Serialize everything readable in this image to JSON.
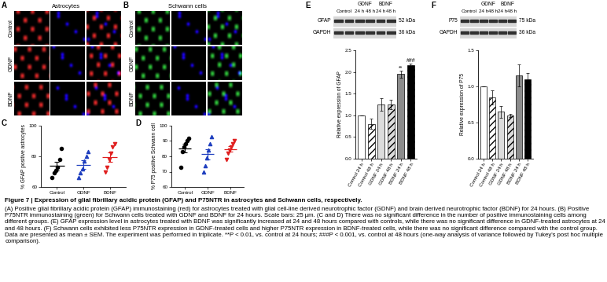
{
  "images": [
    {
      "panel": "A",
      "title": "Astrocytes",
      "rows": [
        "Control",
        "GDNF",
        "BDNF"
      ],
      "color": "#e02828"
    },
    {
      "panel": "B",
      "title": "Schwann cells",
      "rows": [
        "Control",
        "GDNF",
        "BDNF"
      ],
      "color": "#2ec43a"
    }
  ],
  "blots": [
    {
      "panel": "E",
      "groups": [
        {
          "name": "Control"
        },
        {
          "name": "GDNF",
          "lanes": [
            "24 h",
            "48 h"
          ]
        },
        {
          "name": "BDNF",
          "lanes": [
            "24 h",
            "48 h"
          ]
        }
      ],
      "proteins": [
        {
          "name": "GFAP",
          "size": "52 kDa"
        },
        {
          "name": "GAPDH",
          "size": "36 kDa"
        }
      ]
    },
    {
      "panel": "F",
      "groups": [
        {
          "name": "Control"
        },
        {
          "name": "GDNF",
          "lanes": [
            "24 h",
            "48 h"
          ]
        },
        {
          "name": "BDNF",
          "lanes": [
            "24 h",
            "48 h"
          ]
        }
      ],
      "proteins": [
        {
          "name": "P75",
          "size": "75 kDa"
        },
        {
          "name": "GAPDH",
          "size": "36 kDa"
        }
      ]
    }
  ],
  "chart_data": [
    {
      "panel": "C",
      "type": "scatter",
      "ylabel": "% GFAP positive astrocytes",
      "ylim": [
        60,
        100
      ],
      "yticks": [
        60,
        80,
        100
      ],
      "series": [
        {
          "name": "Control",
          "color": "#000000",
          "marker": "circle",
          "values": [
            66,
            69,
            71,
            73,
            78,
            85
          ],
          "mean": 73.7,
          "sem": 2.8
        },
        {
          "name": "GDNF",
          "color": "#1f3fbf",
          "marker": "triangle_up",
          "values": [
            66,
            69,
            72,
            77,
            80,
            83
          ],
          "mean": 74.5,
          "sem": 2.7
        },
        {
          "name": "BDNF",
          "color": "#e02020",
          "marker": "triangle_down",
          "values": [
            70,
            73,
            78,
            82,
            86,
            88
          ],
          "mean": 79.5,
          "sem": 2.9
        }
      ]
    },
    {
      "panel": "D",
      "type": "scatter",
      "ylabel": "% P75 positive Schwann cell",
      "ylim": [
        60,
        100
      ],
      "yticks": [
        60,
        70,
        80,
        90,
        100
      ],
      "series": [
        {
          "name": "Control",
          "color": "#000000",
          "marker": "circle",
          "values": [
            73,
            83,
            86,
            88,
            90,
            92
          ],
          "mean": 85.3,
          "sem": 2.8
        },
        {
          "name": "GDNF",
          "color": "#1f3fbf",
          "marker": "triangle_up",
          "values": [
            70,
            74,
            79,
            84,
            88,
            93
          ],
          "mean": 81.3,
          "sem": 3.5
        },
        {
          "name": "BDNF",
          "color": "#e02020",
          "marker": "triangle_down",
          "values": [
            78,
            82,
            84,
            86,
            88,
            90
          ],
          "mean": 84.7,
          "sem": 1.8
        }
      ]
    },
    {
      "panel": "E",
      "type": "bar",
      "ylabel": "Relative expression of GFAP",
      "categories": [
        "Control 24 h",
        "Control 48 h",
        "GDNF 24 h",
        "GDNF 48 h",
        "BDNF 24 h",
        "BDNF 48 h"
      ],
      "values": [
        1.0,
        0.8,
        1.25,
        1.25,
        1.95,
        2.15
      ],
      "error": [
        0,
        0.12,
        0.15,
        0.1,
        0.08,
        0.05
      ],
      "colors": [
        "#ffffff",
        "#ffffff",
        "#dcdcdc",
        "#dcdcdc",
        "#8c8c8c",
        "#000000"
      ],
      "ylim": [
        0,
        2.5
      ],
      "yticks": [
        {
          "value": 0,
          "label": "0.0"
        },
        {
          "value": 0.5,
          "label": "0.5"
        },
        {
          "value": 1.0,
          "label": "1.0"
        },
        {
          "value": 1.5,
          "label": "1.5"
        },
        {
          "value": 2.0,
          "label": "2.0"
        },
        {
          "value": 2.5,
          "label": "2.5"
        }
      ],
      "annotations": [
        {
          "category": "BDNF 24 h",
          "text": "**"
        },
        {
          "category": "BDNF 48 h",
          "text": "###"
        }
      ]
    },
    {
      "panel": "F",
      "type": "bar",
      "ylabel": "Relative expression of P75",
      "categories": [
        "Control 24 h",
        "Control 48 h",
        "GDNF 24 h",
        "GDNF 48 h",
        "BDNF 24 h",
        "BDNF 48 h"
      ],
      "values": [
        1.0,
        0.85,
        0.65,
        0.6,
        1.15,
        1.1
      ],
      "error": [
        0,
        0.1,
        0.08,
        0.02,
        0.15,
        0.08
      ],
      "colors": [
        "#ffffff",
        "#ffffff",
        "#dcdcdc",
        "#dcdcdc",
        "#8c8c8c",
        "#000000"
      ],
      "ylim": [
        0,
        1.5
      ],
      "yticks": [
        {
          "value": 0,
          "label": "0.0"
        },
        {
          "value": 0.5,
          "label": "0.5"
        },
        {
          "value": 1.0,
          "label": "1.0"
        },
        {
          "value": 1.5,
          "label": "1.5"
        }
      ]
    }
  ],
  "caption": {
    "title": "Figure 7 | Expression of glial fibrillary acidic protein (GFAP) and P75NTR in astrocytes and Schwann cells, respectively.",
    "text": "(A) Positive glial fibrillary acidic protein (GFAP) immunostaining (red) for astrocytes treated with glial cell-line derived neurotrophic factor (GDNF) and brain derived neurotrophic factor (BDNF) for 24 hours. (B) Positive P75NTR immunostaining (green) for Schwann cells treated with GDNF and BDNF for 24 hours. Scale bars: 25 µm. (C and D) There was no significant difference in the number of positive immunostaining cells among different groups. (E) GFAP expression level in astrocytes treated with BDNF was significantly increased at 24 and 48 hours compared with controls, while there was no significant difference in GDNF-treated astrocytes at 24 and 48 hours. (F) Schwann cells exhibited less P75NTR expression in GDNF-treated cells and higher P75NTR expression in BDNF-treated cells, while there was no significant difference compared with the control group. Data are presented as mean ± SEM. The experiment was performed in triplicate. **P < 0.01, vs. control at 24 hours; ###P < 0.001, vs. control at 48 hours (one-way analysis of variance followed by Tukey's post hoc multiple comparison)."
  }
}
